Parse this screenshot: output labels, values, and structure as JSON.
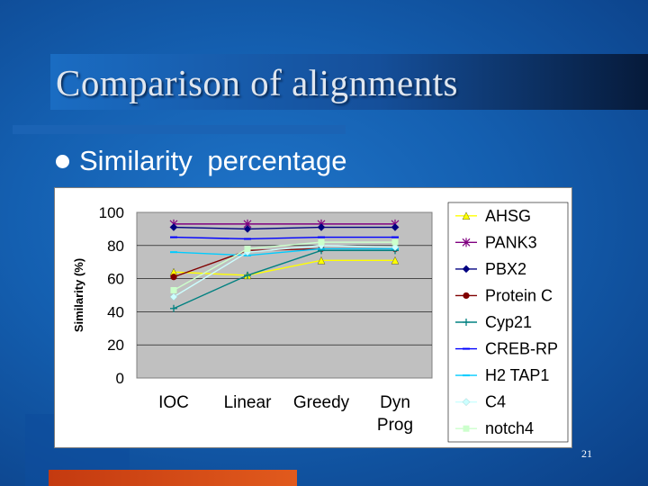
{
  "slide": {
    "title": "Comparison of alignments",
    "bullet": "Similarity percentage",
    "page_number": "21"
  },
  "colors": {
    "background": "#145fb0",
    "accent_bar": "#d9491a",
    "plot_area": "#c0c0c0"
  },
  "chart_data": {
    "type": "line",
    "title": "",
    "xlabel": "",
    "ylabel": "Similarity (%)",
    "ylim": [
      0,
      100
    ],
    "yticks": [
      0,
      20,
      40,
      60,
      80,
      100
    ],
    "categories": [
      "IOC",
      "Linear",
      "Greedy",
      "Dyn Prog"
    ],
    "grid": true,
    "legend": "right",
    "series": [
      {
        "name": "AHSG",
        "values": [
          64,
          62,
          71,
          71
        ],
        "color": "#ffff00",
        "marker": "triangle"
      },
      {
        "name": "PANK3",
        "values": [
          93,
          93,
          93,
          93
        ],
        "color": "#800080",
        "marker": "star"
      },
      {
        "name": "PBX2",
        "values": [
          91,
          90,
          91,
          91
        ],
        "color": "#000080",
        "marker": "diamond"
      },
      {
        "name": "Protein C",
        "values": [
          61,
          77,
          78,
          78
        ],
        "color": "#800000",
        "marker": "circle"
      },
      {
        "name": "Cyp21",
        "values": [
          42,
          62,
          77,
          77
        ],
        "color": "#008080",
        "marker": "plus"
      },
      {
        "name": "CREB-RP",
        "values": [
          85,
          84,
          85,
          85
        ],
        "color": "#0000ff",
        "marker": "dash"
      },
      {
        "name": "H2 TAP1",
        "values": [
          76,
          74,
          78,
          78
        ],
        "color": "#00ccff",
        "marker": "dash"
      },
      {
        "name": "C4",
        "values": [
          49,
          76,
          80,
          79
        ],
        "color": "#ccffff",
        "marker": "diamond"
      },
      {
        "name": "notch4",
        "values": [
          53,
          78,
          82,
          82
        ],
        "color": "#ccffcc",
        "marker": "square"
      }
    ]
  }
}
